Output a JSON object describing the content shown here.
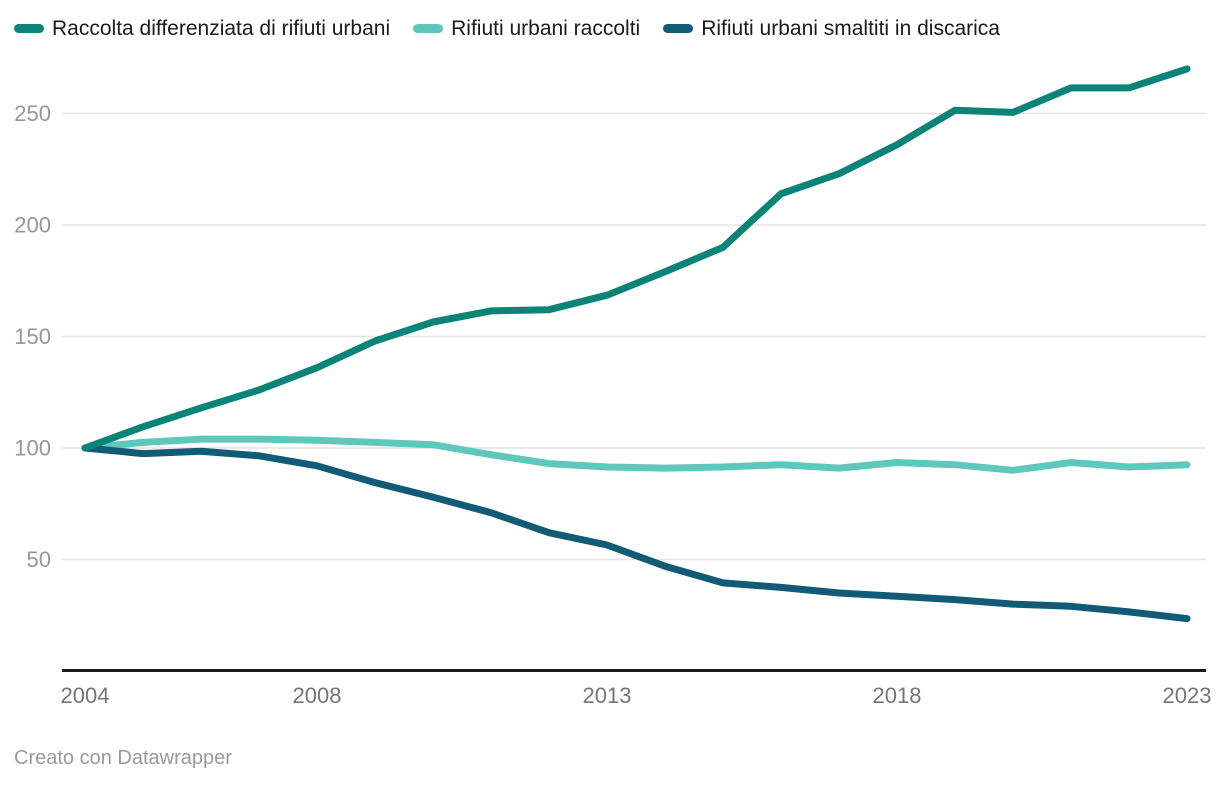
{
  "legend": {
    "items": [
      {
        "label": "Raccolta differenziata di rifiuti urbani",
        "color": "#0A8477"
      },
      {
        "label": "Rifiuti urbani raccolti",
        "color": "#5EC8BC"
      },
      {
        "label": "Rifiuti urbani smaltiti in discarica",
        "color": "#115B76"
      }
    ]
  },
  "chart_data": {
    "type": "line",
    "x": [
      2004,
      2005,
      2006,
      2007,
      2008,
      2009,
      2010,
      2011,
      2012,
      2013,
      2014,
      2015,
      2016,
      2017,
      2018,
      2019,
      2020,
      2021,
      2022,
      2023
    ],
    "series": [
      {
        "name": "Raccolta differenziata di rifiuti urbani",
        "color": "#0A8477",
        "values": [
          100,
          109.5,
          118,
          126,
          136,
          148,
          156.5,
          161.5,
          162,
          168.5,
          179,
          190,
          214,
          223,
          236,
          251.5,
          250.5,
          261.5,
          261.5,
          270
        ]
      },
      {
        "name": "Rifiuti urbani raccolti",
        "color": "#5EC8BC",
        "values": [
          100,
          102.5,
          104,
          104,
          103.5,
          102.5,
          101.5,
          97,
          93,
          91.5,
          91,
          91.5,
          92.5,
          91,
          93.5,
          92.5,
          90,
          93.5,
          91.5,
          92.5
        ]
      },
      {
        "name": "Rifiuti urbani smaltiti in discarica",
        "color": "#115B76",
        "values": [
          100,
          97.5,
          98.5,
          96.5,
          92,
          84.5,
          78,
          71,
          62,
          56.5,
          47,
          39.5,
          37.5,
          35,
          33.5,
          32,
          30,
          29,
          26.5,
          23.5
        ]
      }
    ],
    "y_ticks": [
      50,
      100,
      150,
      200,
      250
    ],
    "x_ticks": [
      2004,
      2008,
      2013,
      2018,
      2023
    ],
    "ylim": [
      0,
      300
    ],
    "grid": true,
    "legend_position": "top",
    "title": "",
    "xlabel": "",
    "ylabel": ""
  },
  "colors": {
    "background": "#ffffff",
    "gridline": "#e4e4e4",
    "baseline": "#1a1a1a",
    "y_tick_label": "#979797",
    "x_tick_label": "#757575",
    "legend_text": "#1a1a1a",
    "attribution_text": "#9a9a9a"
  },
  "footer": {
    "attribution": "Creato con Datawrapper"
  }
}
